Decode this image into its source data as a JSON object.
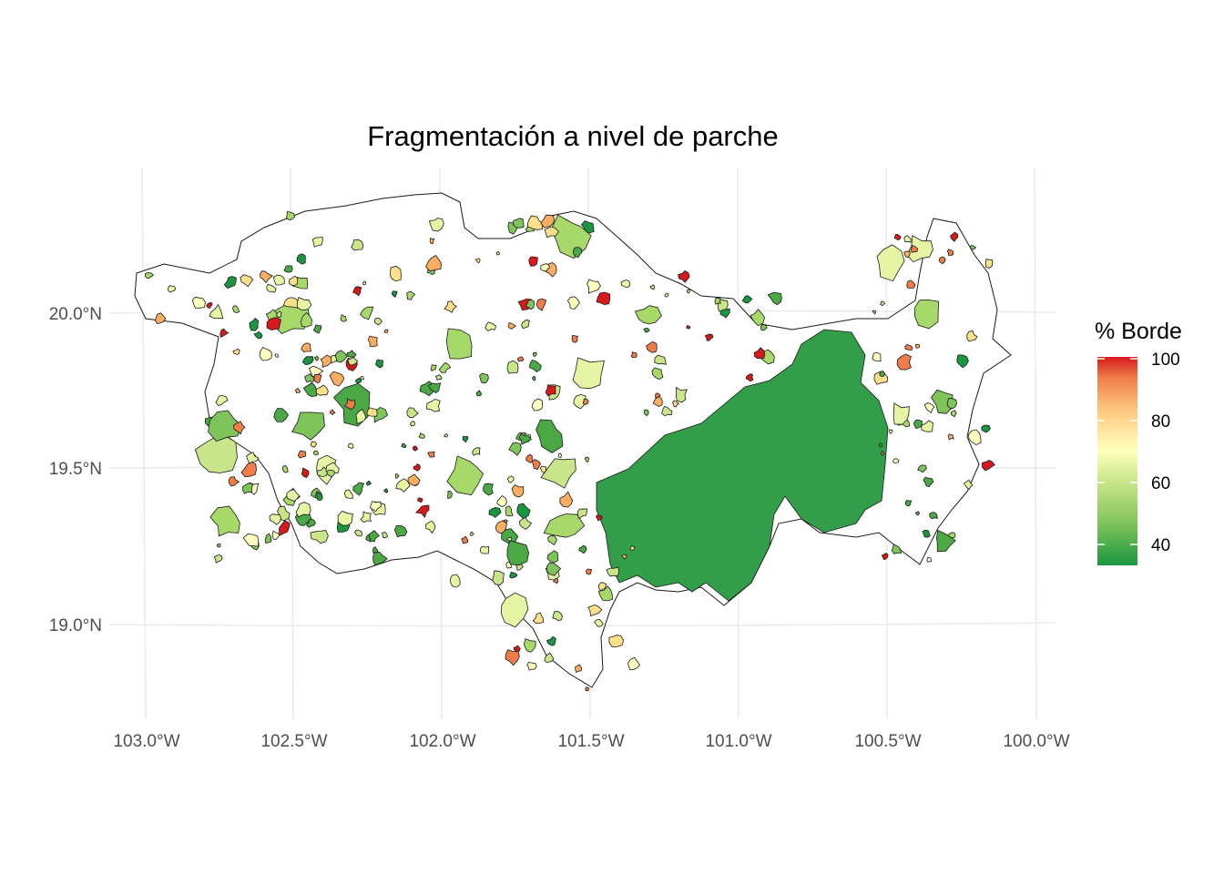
{
  "chart": {
    "title": "Fragmentación a nivel de parche",
    "x_ticks": [
      "103.0°W",
      "102.5°W",
      "102.0°W",
      "101.5°W",
      "101.0°W",
      "100.5°W",
      "100.0°W"
    ],
    "y_ticks": [
      "20.0°N",
      "19.5°N",
      "19.0°N"
    ],
    "legend": {
      "title": "% Borde",
      "labels": [
        "100",
        "80",
        "60",
        "40"
      ]
    }
  },
  "chart_data": {
    "type": "choropleth",
    "title": "Fragmentación a nivel de parche",
    "fill_variable": "% Borde",
    "fill_range": [
      33,
      100
    ],
    "color_scale": [
      "#1a9641",
      "#a6d96a",
      "#ffffbf",
      "#fdae61",
      "#d7191c"
    ],
    "x_ticks_deg": [
      -103.0,
      -102.5,
      -102.0,
      -101.5,
      -101.0,
      -100.5,
      -100.0
    ],
    "y_ticks_deg": [
      20.0,
      19.5,
      19.0
    ],
    "xlim": [
      -103.1,
      -100.0
    ],
    "ylim": [
      18.8,
      20.4
    ],
    "grid": true
  }
}
